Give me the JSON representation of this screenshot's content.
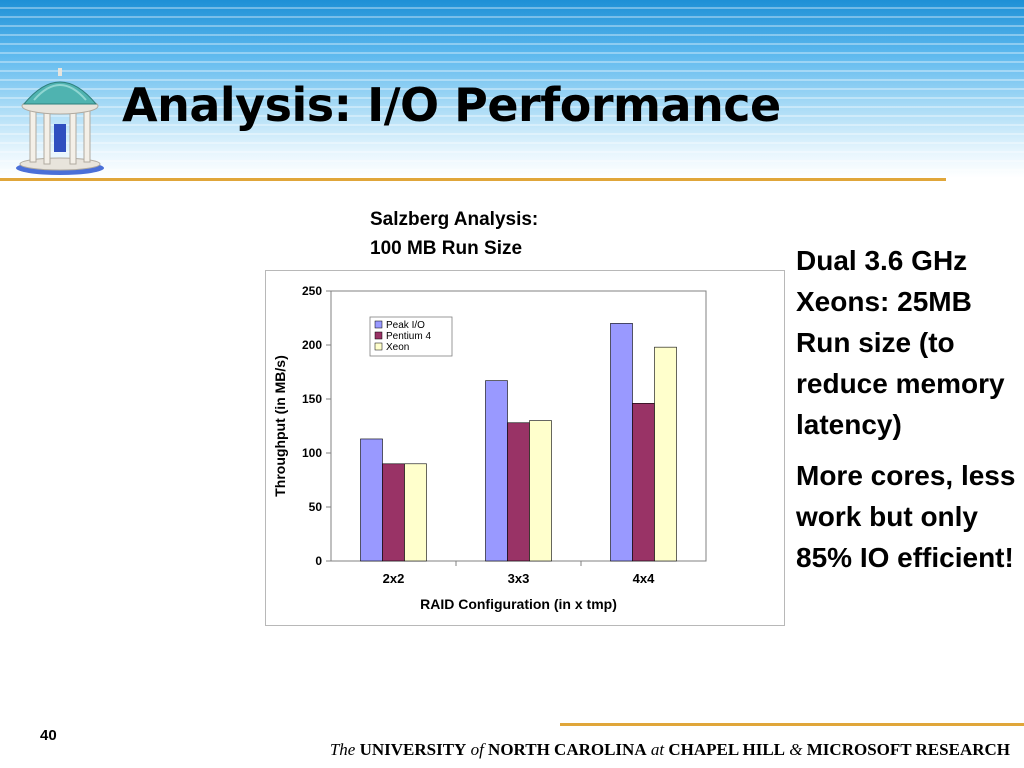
{
  "slide": {
    "title": "Analysis: I/O Performance",
    "caption_line1": "Salzberg Analysis:",
    "caption_line2": "100 MB Run Size",
    "side_text_1": "Dual 3.6 GHz Xeons: 25MB Run size (to reduce memory latency)",
    "side_text_2": "More cores, less work but only 85% IO efficient!",
    "page_number": "40",
    "footer": {
      "the": "The",
      "university": "UNIVERSITY",
      "of": "of",
      "nc": "NORTH CAROLINA",
      "at": "at",
      "chapel": "CHAPEL HILL",
      "amp": "&",
      "ms": "MICROSOFT RESEARCH"
    }
  },
  "colors": {
    "accent_rule": "#e0a63a",
    "header_blue": "#1e90d6"
  },
  "icons": {
    "logo": "old-well-icon"
  },
  "chart_data": {
    "type": "bar",
    "xlabel": "RAID Configuration (in x tmp)",
    "ylabel": "Throughput (in MB/s)",
    "categories": [
      "2x2",
      "3x3",
      "4x4"
    ],
    "ylim": [
      0,
      250
    ],
    "yticks": [
      0,
      50,
      100,
      150,
      200,
      250
    ],
    "grid": false,
    "legend_position": "top-left",
    "series": [
      {
        "name": "Peak I/O",
        "values": [
          113,
          167,
          220
        ],
        "color": "#9999ff"
      },
      {
        "name": "Pentium 4",
        "values": [
          90,
          128,
          146
        ],
        "color": "#993366"
      },
      {
        "name": "Xeon",
        "values": [
          90,
          130,
          198
        ],
        "color": "#ffffcc"
      }
    ]
  }
}
